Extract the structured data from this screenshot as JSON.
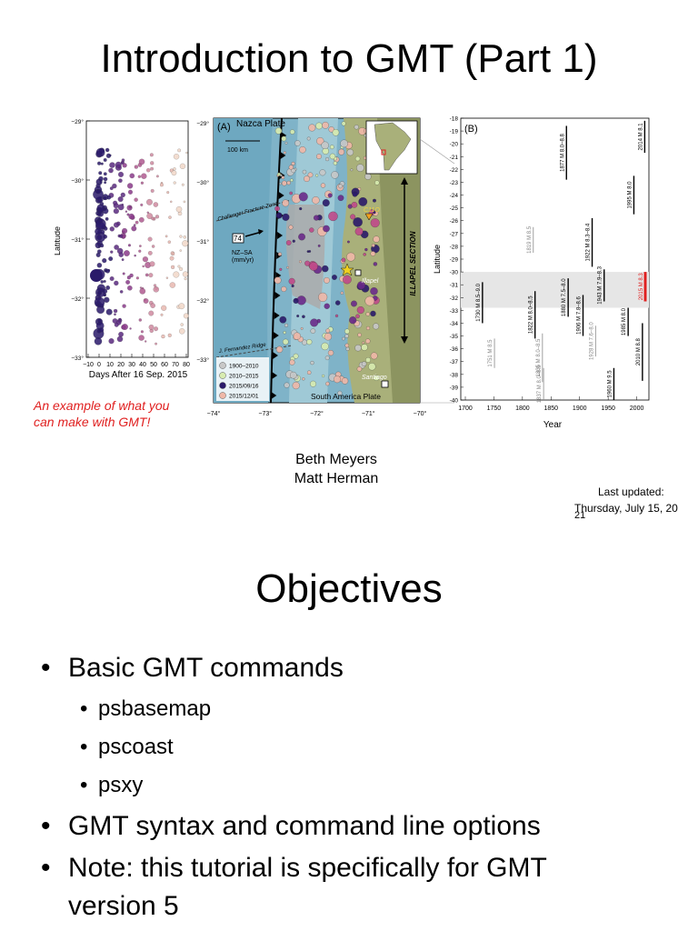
{
  "slide1": {
    "title": "Introduction to GMT (Part 1)",
    "caption_line1": "An example of what you",
    "caption_line2": "can make with GMT!",
    "author1": "Beth Meyers",
    "author2": "Matt Herman",
    "updated_label": "Last updated:",
    "updated_date": "Thursday, July 15, 20",
    "updated_date_wrap": "21"
  },
  "figure": {
    "left_panel": {
      "ylabel": "Latitude",
      "xlabel": "Days After 16 Sep. 2015",
      "yticks": [
        "−29°",
        "−30°",
        "−31°",
        "−32°",
        "−33°"
      ],
      "xticks": [
        "−10",
        "0",
        "10",
        "20",
        "30",
        "40",
        "50",
        "60",
        "70",
        "80"
      ]
    },
    "map_panel": {
      "panel_label": "(A)",
      "plate_top": "Nazca Plate",
      "scale": "100 km",
      "fracture_zone": "Challenger Fracture Zone",
      "rate_value": "74",
      "rate_label1": "NZ–SA",
      "rate_label2": "(mm/yr)",
      "station": "C11O",
      "section": "ILLAPEL SECTION",
      "city1": "Illapel",
      "city2": "Santiago",
      "ridge": "J. Fernandez Ridge",
      "plate_bottom": "South America Plate",
      "legend": [
        "1900–2010",
        "2010–2015",
        "2015/09/16",
        "2015/12/01"
      ],
      "legend_colors": [
        "#c8c8c8",
        "#d8ecb0",
        "#2a1a6a",
        "#f0b8a8"
      ],
      "yticks_right": [
        "−29°",
        "−30°",
        "−31°",
        "−32°",
        "−33°"
      ],
      "xticks": [
        "−74°",
        "−73°",
        "−72°",
        "−71°",
        "−70°"
      ]
    },
    "history_panel": {
      "panel_label": "(B)",
      "ylabel": "Latitude",
      "xlabel": "Year",
      "yticks": [
        "-18",
        "-19",
        "-20",
        "-21",
        "-22",
        "-23",
        "-24",
        "-25",
        "-26",
        "-27",
        "-28",
        "-29",
        "-30",
        "-31",
        "-32",
        "-33",
        "-34",
        "-35",
        "-36",
        "-37",
        "-38",
        "-39",
        "-40"
      ],
      "xticks": [
        "1700",
        "1750",
        "1800",
        "1850",
        "1900",
        "1950",
        "2000"
      ],
      "events": [
        {
          "year": 1730,
          "lat_top": -30.8,
          "lat_bottom": -34.0,
          "label": "1730 M 8.5–9.0",
          "style": "major"
        },
        {
          "year": 1751,
          "lat_top": -35.2,
          "lat_bottom": -37.5,
          "label": "1751 M 8.5",
          "style": "minor"
        },
        {
          "year": 1819,
          "lat_top": -26.5,
          "lat_bottom": -28.5,
          "label": "1819 M 8.5",
          "style": "minor"
        },
        {
          "year": 1822,
          "lat_top": -31.5,
          "lat_bottom": -35.2,
          "label": "1822 M 8.0–8.5",
          "style": "major"
        },
        {
          "year": 1835,
          "lat_top": -34.8,
          "lat_bottom": -38.6,
          "label": "1835 M 8.0–8.5",
          "style": "minor"
        },
        {
          "year": 1837,
          "lat_top": -37.5,
          "lat_bottom": -40.0,
          "label": "1837 M 8.0–8.5",
          "style": "minor"
        },
        {
          "year": 1877,
          "lat_top": -18.6,
          "lat_bottom": -22.8,
          "label": "1877 M 8.0–8.8",
          "style": "major"
        },
        {
          "year": 1880,
          "lat_top": -30.5,
          "lat_bottom": -33.5,
          "label": "1880 M 7.5–8.0",
          "style": "major"
        },
        {
          "year": 1906,
          "lat_top": -31.8,
          "lat_bottom": -35.0,
          "label": "1906 M 7.8–8.6",
          "style": "major"
        },
        {
          "year": 1922,
          "lat_top": -25.8,
          "lat_bottom": -29.6,
          "label": "1922 M 8.3–8.4",
          "style": "major"
        },
        {
          "year": 1928,
          "lat_top": -34.2,
          "lat_bottom": -36.6,
          "label": "1928 M 7.6–8.0",
          "style": "minor"
        },
        {
          "year": 1943,
          "lat_top": -29.8,
          "lat_bottom": -32.3,
          "label": "1943 M 7.9–8.3",
          "style": "major"
        },
        {
          "year": 1960,
          "lat_top": -37.5,
          "lat_bottom": -40.0,
          "label": "1960 M 9.5",
          "style": "major"
        },
        {
          "year": 1985,
          "lat_top": -32.8,
          "lat_bottom": -35.0,
          "label": "1985 M 8.0",
          "style": "major"
        },
        {
          "year": 1995,
          "lat_top": -22.5,
          "lat_bottom": -25.5,
          "label": "1995 M 8.0",
          "style": "major"
        },
        {
          "year": 2010,
          "lat_top": -34.0,
          "lat_bottom": -38.5,
          "label": "2010 M 8.8",
          "style": "major"
        },
        {
          "year": 2014,
          "lat_top": -18.2,
          "lat_bottom": -20.7,
          "label": "2014 M 8.1",
          "style": "major"
        },
        {
          "year": 2015,
          "lat_top": -30.0,
          "lat_bottom": -32.3,
          "label": "2015 M 8.3",
          "style": "highlight"
        }
      ],
      "highlight_lat": [
        -30.0,
        -32.8
      ]
    }
  },
  "slide2": {
    "title": "Objectives",
    "bullets": [
      "Basic GMT commands",
      "psbasemap",
      "pscoast",
      "psxy",
      "GMT syntax and command line options",
      "Note: this tutorial is specifically for GMT",
      "version 5"
    ]
  }
}
